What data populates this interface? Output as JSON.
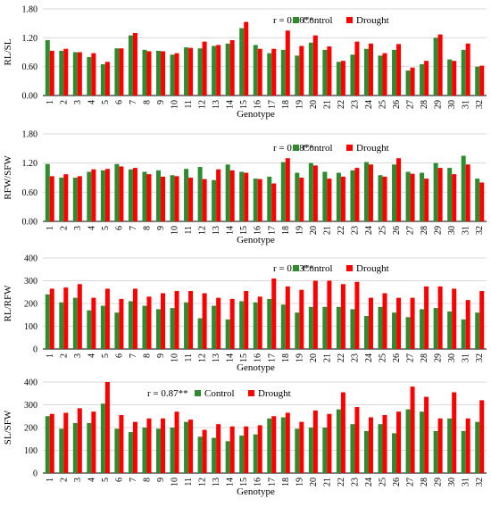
{
  "legend": {
    "control": "Control",
    "drought": "Drought"
  },
  "colors": {
    "control": "#2e8b2e",
    "drought": "#ff0000",
    "grid": "#d9d9d9"
  },
  "chart_data": [
    {
      "type": "bar",
      "ylabel": "RL/SL",
      "xlabel": "Genotype",
      "annotation": "r = 0.86**",
      "ylim": [
        0,
        1.8
      ],
      "yticks": [
        "0.00",
        "0.60",
        "1.20",
        "1.80"
      ],
      "grid": true,
      "legend_position": "top-right",
      "categories": [
        "1",
        "2",
        "3",
        "4",
        "5",
        "6",
        "7",
        "8",
        "9",
        "10",
        "11",
        "12",
        "13",
        "14",
        "15",
        "16",
        "17",
        "18",
        "19",
        "20",
        "21",
        "22",
        "23",
        "24",
        "25",
        "26",
        "27",
        "28",
        "29",
        "30",
        "31",
        "32"
      ],
      "series": [
        {
          "name": "Control",
          "values": [
            1.15,
            0.93,
            0.9,
            0.8,
            0.65,
            0.98,
            1.25,
            0.95,
            0.93,
            0.85,
            1.0,
            0.98,
            1.03,
            1.08,
            1.4,
            1.05,
            0.88,
            0.95,
            0.83,
            1.1,
            0.95,
            0.7,
            0.85,
            0.97,
            0.83,
            0.95,
            0.52,
            0.65,
            1.2,
            0.75,
            0.95,
            0.6
          ]
        },
        {
          "name": "Drought",
          "values": [
            0.93,
            0.97,
            0.9,
            0.88,
            0.7,
            0.98,
            1.3,
            0.92,
            0.92,
            0.88,
            0.99,
            1.12,
            1.05,
            1.15,
            1.53,
            0.97,
            0.97,
            1.35,
            1.03,
            1.25,
            1.02,
            0.72,
            1.12,
            1.08,
            0.88,
            1.07,
            0.58,
            0.72,
            1.27,
            0.72,
            1.08,
            0.62
          ]
        }
      ]
    },
    {
      "type": "bar",
      "ylabel": "RFW/SFW",
      "xlabel": "Genotype",
      "annotation": "r = 0.68**",
      "ylim": [
        0,
        1.8
      ],
      "yticks": [
        "0.00",
        "0.60",
        "1.20",
        "1.80"
      ],
      "grid": true,
      "legend_position": "top-right",
      "categories": [
        "1",
        "2",
        "3",
        "4",
        "5",
        "6",
        "7",
        "8",
        "9",
        "10",
        "11",
        "12",
        "13",
        "14",
        "15",
        "16",
        "17",
        "18",
        "19",
        "20",
        "21",
        "22",
        "23",
        "24",
        "25",
        "26",
        "27",
        "28",
        "29",
        "30",
        "31",
        "32"
      ],
      "series": [
        {
          "name": "Control",
          "values": [
            1.18,
            0.9,
            0.9,
            1.02,
            1.05,
            1.18,
            1.07,
            1.02,
            1.05,
            0.95,
            1.08,
            1.12,
            0.85,
            1.17,
            1.02,
            0.88,
            0.92,
            1.22,
            1.0,
            1.2,
            1.02,
            1.0,
            1.05,
            1.22,
            0.95,
            1.17,
            1.02,
            1.0,
            1.2,
            1.1,
            1.35,
            0.88
          ]
        },
        {
          "name": "Drought",
          "values": [
            0.93,
            0.97,
            0.93,
            1.07,
            1.08,
            1.13,
            1.1,
            0.97,
            0.92,
            0.93,
            0.9,
            0.87,
            1.07,
            1.05,
            1.0,
            0.87,
            0.78,
            1.3,
            0.9,
            1.15,
            0.88,
            0.92,
            1.1,
            1.17,
            0.92,
            1.3,
            0.98,
            0.88,
            1.1,
            0.97,
            1.17,
            0.8
          ]
        }
      ]
    },
    {
      "type": "bar",
      "ylabel": "RL/RFW",
      "xlabel": "Genotype",
      "annotation": "r = 0.53**",
      "ylim": [
        0,
        400
      ],
      "yticks": [
        "0",
        "100",
        "200",
        "300",
        "400"
      ],
      "grid": true,
      "legend_position": "top-right",
      "categories": [
        "1",
        "2",
        "3",
        "4",
        "5",
        "6",
        "7",
        "8",
        "9",
        "10",
        "11",
        "12",
        "13",
        "14",
        "15",
        "16",
        "17",
        "18",
        "19",
        "20",
        "21",
        "22",
        "23",
        "24",
        "25",
        "26",
        "27",
        "28",
        "29",
        "30",
        "31",
        "32"
      ],
      "series": [
        {
          "name": "Control",
          "values": [
            240,
            205,
            225,
            170,
            190,
            160,
            210,
            190,
            175,
            180,
            205,
            135,
            190,
            130,
            210,
            205,
            220,
            195,
            160,
            185,
            185,
            185,
            175,
            145,
            185,
            160,
            140,
            175,
            180,
            165,
            130,
            160
          ]
        },
        {
          "name": "Drought",
          "values": [
            265,
            270,
            285,
            225,
            265,
            220,
            265,
            230,
            245,
            255,
            255,
            245,
            225,
            220,
            255,
            230,
            310,
            275,
            260,
            300,
            300,
            285,
            295,
            225,
            245,
            225,
            225,
            275,
            275,
            265,
            215,
            255
          ]
        }
      ]
    },
    {
      "type": "bar",
      "ylabel": "SL/SFW",
      "xlabel": "Genotype",
      "annotation": "r = 0.87**",
      "ylim": [
        0,
        400
      ],
      "yticks": [
        "0",
        "100",
        "200",
        "300",
        "400"
      ],
      "grid": true,
      "legend_position": "top-center",
      "categories": [
        "1",
        "2",
        "3",
        "4",
        "5",
        "6",
        "7",
        "8",
        "9",
        "10",
        "11",
        "12",
        "13",
        "14",
        "15",
        "16",
        "17",
        "18",
        "19",
        "20",
        "21",
        "22",
        "23",
        "24",
        "25",
        "26",
        "27",
        "28",
        "29",
        "30",
        "31",
        "32"
      ],
      "series": [
        {
          "name": "Control",
          "values": [
            250,
            195,
            220,
            220,
            305,
            195,
            180,
            200,
            195,
            200,
            225,
            160,
            155,
            140,
            165,
            170,
            240,
            245,
            195,
            200,
            200,
            280,
            215,
            185,
            215,
            175,
            280,
            270,
            185,
            240,
            185,
            225
          ]
        },
        {
          "name": "Drought",
          "values": [
            260,
            265,
            285,
            270,
            400,
            255,
            225,
            240,
            240,
            270,
            235,
            190,
            215,
            205,
            205,
            210,
            250,
            265,
            225,
            275,
            260,
            355,
            290,
            245,
            255,
            270,
            380,
            335,
            240,
            355,
            240,
            320
          ]
        }
      ]
    }
  ]
}
